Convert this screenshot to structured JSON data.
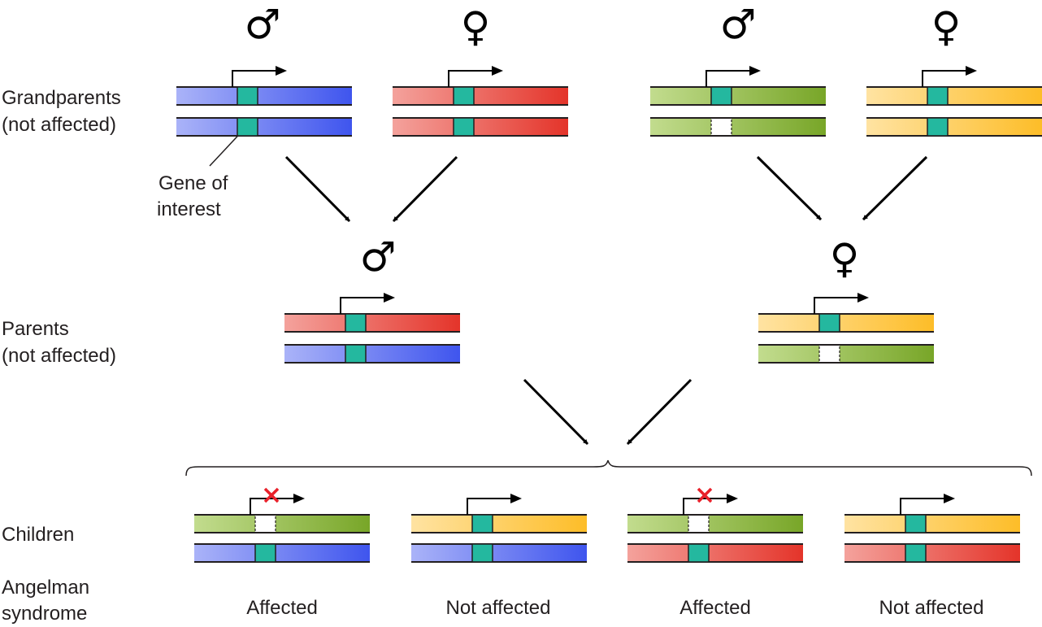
{
  "labels": {
    "grandparents_line1": "Grandparents",
    "grandparents_line2": "(not affected)",
    "gene_line1": "Gene of",
    "gene_line2": "interest",
    "parents_line1": "Parents",
    "parents_line2": "(not affected)",
    "children": "Children",
    "angelman_line1": "Angelman",
    "angelman_line2": "syndrome"
  },
  "symbols": {
    "male": "♂",
    "female": "♀"
  },
  "outcomes": [
    "Affected",
    "Not affected",
    "Affected",
    "Not affected"
  ],
  "colors": {
    "blue": [
      "#aab3f8",
      "#3f55ee"
    ],
    "red": [
      "#f4a29c",
      "#e4342a"
    ],
    "green": [
      "#c2dc8e",
      "#78a628"
    ],
    "yellow": [
      "#ffe3a2",
      "#fdbd28"
    ],
    "gene": "#24b89f",
    "deleted": "#ffffff",
    "x_mark": "#e8202a",
    "outline": "#231f20"
  },
  "generations": {
    "grandparents": [
      {
        "sex": "male",
        "chromosomes": [
          {
            "color": "blue",
            "gene": "present",
            "expressed": true
          },
          {
            "color": "blue",
            "gene": "present",
            "expressed": false
          }
        ]
      },
      {
        "sex": "female",
        "chromosomes": [
          {
            "color": "red",
            "gene": "present",
            "expressed": true
          },
          {
            "color": "red",
            "gene": "present",
            "expressed": false
          }
        ]
      },
      {
        "sex": "male",
        "chromosomes": [
          {
            "color": "green",
            "gene": "present",
            "expressed": true
          },
          {
            "color": "green",
            "gene": "deleted",
            "expressed": false
          }
        ]
      },
      {
        "sex": "female",
        "chromosomes": [
          {
            "color": "yellow",
            "gene": "present",
            "expressed": true
          },
          {
            "color": "yellow",
            "gene": "present",
            "expressed": false
          }
        ]
      }
    ],
    "parents": [
      {
        "sex": "male",
        "chromosomes": [
          {
            "color": "red",
            "gene": "present",
            "expressed": true
          },
          {
            "color": "blue",
            "gene": "present",
            "expressed": false
          }
        ]
      },
      {
        "sex": "female",
        "chromosomes": [
          {
            "color": "yellow",
            "gene": "present",
            "expressed": true
          },
          {
            "color": "green",
            "gene": "deleted",
            "expressed": false
          }
        ]
      }
    ],
    "children": [
      {
        "chromosomes": [
          {
            "color": "green",
            "gene": "deleted",
            "expressed": true,
            "blocked": true
          },
          {
            "color": "blue",
            "gene": "present",
            "expressed": false
          }
        ]
      },
      {
        "chromosomes": [
          {
            "color": "yellow",
            "gene": "present",
            "expressed": true,
            "blocked": false
          },
          {
            "color": "blue",
            "gene": "present",
            "expressed": false
          }
        ]
      },
      {
        "chromosomes": [
          {
            "color": "green",
            "gene": "deleted",
            "expressed": true,
            "blocked": true
          },
          {
            "color": "red",
            "gene": "present",
            "expressed": false
          }
        ]
      },
      {
        "chromosomes": [
          {
            "color": "yellow",
            "gene": "present",
            "expressed": true,
            "blocked": false
          },
          {
            "color": "red",
            "gene": "present",
            "expressed": false
          }
        ]
      }
    ]
  }
}
